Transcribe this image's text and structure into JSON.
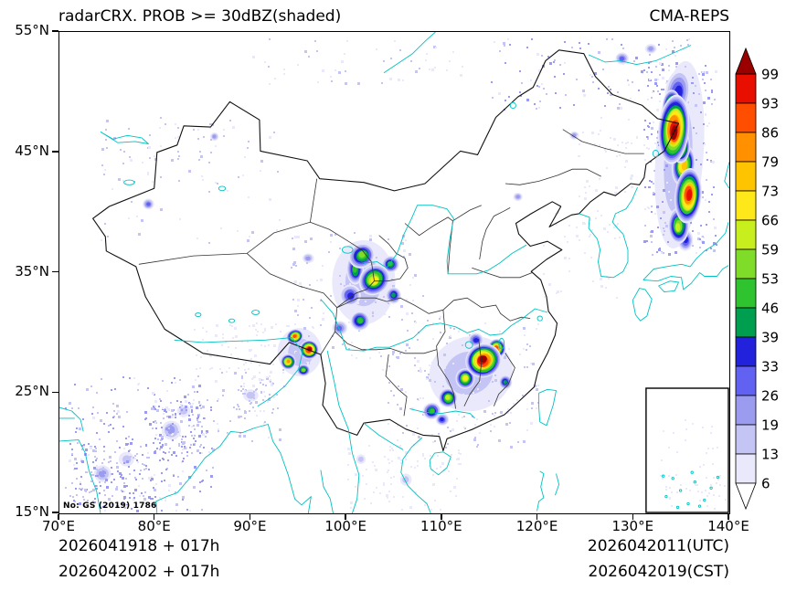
{
  "header": {
    "title": "radarCRX. PROB >= 30dBZ(shaded)",
    "model": "CMA-REPS"
  },
  "map_label": {
    "license": "No: GS (2019) 1786"
  },
  "footer": {
    "left_line1": "2026041918 + 017h",
    "left_line2": "2026042002 + 017h",
    "right_line1": "2026042011(UTC)",
    "right_line2": "2026042019(CST)"
  },
  "chart_data": {
    "type": "heatmap",
    "title": "radarCRX. PROB >= 30dBZ(shaded)",
    "model": "CMA-REPS",
    "init_times": [
      "2026041918 + 017h",
      "2026042002 + 017h"
    ],
    "valid_times": [
      "2026042011(UTC)",
      "2026042019(CST)"
    ],
    "x_axis": {
      "range": [
        70,
        140
      ],
      "ticks": [
        70,
        80,
        90,
        100,
        110,
        120,
        130,
        140
      ],
      "suffix": "°E"
    },
    "y_axis": {
      "range": [
        15,
        55
      ],
      "ticks": [
        15,
        25,
        35,
        45,
        55
      ],
      "suffix": "°N"
    },
    "colorbar": {
      "levels": [
        6,
        13,
        19,
        26,
        33,
        39,
        46,
        53,
        59,
        66,
        73,
        79,
        86,
        93,
        99
      ],
      "colors": [
        "#ffffff",
        "#e9e9fb",
        "#c5c5f5",
        "#9b9bf0",
        "#6262f2",
        "#2222dd",
        "#009e4f",
        "#2fc32f",
        "#7fdc28",
        "#c8ee1e",
        "#ffe81a",
        "#ffc400",
        "#ff9000",
        "#ff4e00",
        "#e80f00",
        "#9a0000"
      ]
    },
    "map_colors": {
      "boundary": "#111111",
      "province": "#333333",
      "water": "#00c2c2"
    },
    "blob_fields": [
      "lon",
      "lat",
      "rx_deg",
      "ry_deg",
      "rotation_deg",
      "max_prob_pct"
    ],
    "blobs": [
      [
        134.8,
        44.8,
        2.5,
        7.8,
        4,
        13
      ],
      [
        134.6,
        50.0,
        1.3,
        1.9,
        8,
        33
      ],
      [
        134.2,
        46.9,
        1.6,
        2.9,
        5,
        99
      ],
      [
        134.0,
        48.7,
        1.0,
        1.5,
        0,
        86
      ],
      [
        134.9,
        45.5,
        1.0,
        1.4,
        0,
        79
      ],
      [
        135.2,
        43.9,
        1.2,
        1.7,
        8,
        73
      ],
      [
        135.7,
        41.4,
        1.4,
        2.3,
        5,
        93
      ],
      [
        134.7,
        38.9,
        1.1,
        1.5,
        0,
        59
      ],
      [
        135.4,
        37.7,
        0.8,
        0.9,
        0,
        33
      ],
      [
        101.8,
        34.2,
        3.3,
        3.5,
        0,
        13
      ],
      [
        101.6,
        36.4,
        1.4,
        1.0,
        -35,
        53
      ],
      [
        100.9,
        35.3,
        0.9,
        1.3,
        0,
        46
      ],
      [
        102.9,
        34.4,
        1.7,
        1.2,
        -45,
        66
      ],
      [
        104.6,
        35.7,
        0.9,
        0.7,
        0,
        46
      ],
      [
        100.4,
        33.1,
        1.1,
        0.9,
        0,
        33
      ],
      [
        101.4,
        31.0,
        1.0,
        0.8,
        0,
        46
      ],
      [
        104.9,
        33.1,
        0.8,
        0.7,
        0,
        39
      ],
      [
        99.3,
        30.4,
        0.8,
        0.6,
        0,
        26
      ],
      [
        95.1,
        28.4,
        2.3,
        2.0,
        0,
        13
      ],
      [
        94.6,
        29.7,
        0.9,
        0.6,
        -20,
        86
      ],
      [
        96.1,
        28.6,
        1.0,
        0.8,
        -20,
        99
      ],
      [
        93.9,
        27.6,
        0.8,
        0.65,
        0,
        79
      ],
      [
        95.5,
        26.9,
        0.7,
        0.5,
        0,
        53
      ],
      [
        113.0,
        26.6,
        4.4,
        3.1,
        -15,
        13
      ],
      [
        114.3,
        27.7,
        1.9,
        1.4,
        -25,
        99
      ],
      [
        115.7,
        28.7,
        0.95,
        0.8,
        0,
        86
      ],
      [
        112.4,
        26.2,
        1.0,
        0.85,
        0,
        66
      ],
      [
        110.6,
        24.6,
        1.0,
        0.8,
        -20,
        59
      ],
      [
        108.9,
        23.5,
        0.95,
        0.7,
        -20,
        46
      ],
      [
        116.6,
        25.9,
        0.7,
        0.6,
        0,
        39
      ],
      [
        113.5,
        29.4,
        0.8,
        0.6,
        0,
        33
      ],
      [
        110.0,
        22.8,
        0.7,
        0.5,
        0,
        33
      ],
      [
        79.3,
        40.7,
        0.6,
        0.45,
        0,
        26
      ],
      [
        86.2,
        46.3,
        0.45,
        0.35,
        0,
        19
      ],
      [
        117.9,
        41.3,
        0.5,
        0.35,
        0,
        19
      ],
      [
        123.8,
        46.4,
        0.5,
        0.35,
        0,
        19
      ],
      [
        128.8,
        52.8,
        0.7,
        0.5,
        0,
        26
      ],
      [
        131.8,
        53.6,
        0.6,
        0.4,
        0,
        19
      ],
      [
        96.0,
        36.2,
        0.6,
        0.4,
        0,
        19
      ],
      [
        81.7,
        21.9,
        1.0,
        0.8,
        0,
        19
      ],
      [
        74.5,
        18.3,
        0.9,
        0.7,
        0,
        19
      ],
      [
        83.0,
        23.5,
        0.7,
        0.5,
        0,
        13
      ],
      [
        77.0,
        19.5,
        0.8,
        0.6,
        0,
        13
      ],
      [
        90.0,
        24.8,
        0.8,
        0.5,
        0,
        13
      ],
      [
        106.2,
        17.8,
        0.6,
        0.5,
        0,
        13
      ],
      [
        101.5,
        19.5,
        0.5,
        0.4,
        0,
        13
      ]
    ],
    "speckle_region_fields": [
      "lon_min",
      "lon_max",
      "lat_min",
      "lat_max",
      "count",
      "max_prob_pct"
    ],
    "speckle_regions": [
      [
        70.5,
        86.0,
        15.2,
        26.5,
        230,
        26
      ],
      [
        71.0,
        80.0,
        16.0,
        21.0,
        130,
        26
      ],
      [
        79.5,
        85.0,
        20.0,
        24.5,
        130,
        26
      ],
      [
        86.0,
        93.5,
        21.0,
        27.0,
        60,
        19
      ],
      [
        88.0,
        92.5,
        23.5,
        26.5,
        50,
        19
      ],
      [
        74.0,
        93.0,
        37.5,
        48.0,
        60,
        19
      ],
      [
        74.0,
        88.0,
        42.5,
        47.5,
        40,
        19
      ],
      [
        90.0,
        112.0,
        50.5,
        54.5,
        50,
        19
      ],
      [
        94.0,
        108.0,
        26.5,
        38.5,
        150,
        19
      ],
      [
        104.0,
        120.0,
        20.5,
        31.5,
        170,
        19
      ],
      [
        100.0,
        112.0,
        15.3,
        21.0,
        90,
        13
      ],
      [
        115.0,
        136.0,
        48.5,
        54.5,
        110,
        26
      ],
      [
        131.0,
        138.6,
        36.5,
        52.5,
        280,
        26
      ],
      [
        120.0,
        128.5,
        33.0,
        40.5,
        45,
        13
      ],
      [
        84.0,
        94.0,
        27.0,
        31.0,
        70,
        13
      ],
      [
        124.0,
        132.0,
        41.0,
        48.0,
        50,
        13
      ]
    ],
    "inset_speckle_regions": [
      [
        132.5,
        139.5,
        15.4,
        19.5,
        40,
        13
      ],
      [
        133.0,
        139.0,
        20.0,
        23.0,
        15,
        13
      ]
    ]
  }
}
